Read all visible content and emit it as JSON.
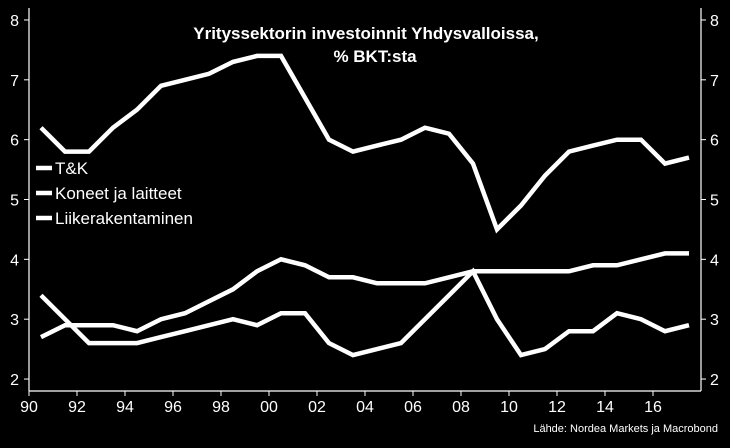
{
  "chart_data": {
    "type": "line",
    "title_lines": [
      "Yrityssektorin investoinnit Yhdysvalloissa,",
      "% BKT:sta"
    ],
    "source": "Lähde: Nordea Markets ja Macrobond",
    "xlim": [
      1990,
      2018
    ],
    "ylim": [
      1.8,
      8.2
    ],
    "x_ticks": [
      1990,
      1992,
      1994,
      1996,
      1998,
      2000,
      2002,
      2004,
      2006,
      2008,
      2010,
      2012,
      2014,
      2016
    ],
    "x_tick_labels": [
      "90",
      "92",
      "94",
      "96",
      "98",
      "00",
      "02",
      "04",
      "06",
      "08",
      "10",
      "12",
      "14",
      "16"
    ],
    "y_ticks": [
      2,
      3,
      4,
      5,
      6,
      7,
      8
    ],
    "y_tick_labels": [
      "2",
      "3",
      "4",
      "5",
      "6",
      "7",
      "8"
    ],
    "legend_position": "left",
    "grid": false,
    "line_color": "#ffffff",
    "background": "#000000",
    "series": [
      {
        "name": "T&K",
        "x": [
          1990.5,
          1991.5,
          1992.5,
          1993.5,
          1994.5,
          1995.5,
          1996.5,
          1997.5,
          1998.5,
          1999.5,
          2000.5,
          2001.5,
          2002.5,
          2003.5,
          2004.5,
          2005.5,
          2006.5,
          2007.5,
          2008.5,
          2009.5,
          2010.5,
          2011.5,
          2012.5,
          2013.5,
          2014.5,
          2015.5,
          2016.5,
          2017.5
        ],
        "values": [
          2.7,
          2.9,
          2.9,
          2.9,
          2.8,
          3.0,
          3.1,
          3.3,
          3.5,
          3.8,
          4.0,
          3.9,
          3.7,
          3.7,
          3.6,
          3.6,
          3.6,
          3.7,
          3.8,
          3.8,
          3.8,
          3.8,
          3.8,
          3.9,
          3.9,
          4.0,
          4.1,
          4.1
        ]
      },
      {
        "name": "Koneet ja laitteet",
        "x": [
          1990.5,
          1991.5,
          1992.5,
          1993.5,
          1994.5,
          1995.5,
          1996.5,
          1997.5,
          1998.5,
          1999.5,
          2000.5,
          2001.5,
          2002.5,
          2003.5,
          2004.5,
          2005.5,
          2006.5,
          2007.5,
          2008.5,
          2009.5,
          2010.5,
          2011.5,
          2012.5,
          2013.5,
          2014.5,
          2015.5,
          2016.5,
          2017.5
        ],
        "values": [
          6.2,
          5.8,
          5.8,
          6.2,
          6.5,
          6.9,
          7.0,
          7.1,
          7.3,
          7.4,
          7.4,
          6.7,
          6.0,
          5.8,
          5.9,
          6.0,
          6.2,
          6.1,
          5.6,
          4.5,
          4.9,
          5.4,
          5.8,
          5.9,
          6.0,
          6.0,
          5.6,
          5.7
        ]
      },
      {
        "name": "Liikerakentaminen",
        "x": [
          1990.5,
          1991.5,
          1992.5,
          1993.5,
          1994.5,
          1995.5,
          1996.5,
          1997.5,
          1998.5,
          1999.5,
          2000.5,
          2001.5,
          2002.5,
          2003.5,
          2004.5,
          2005.5,
          2006.5,
          2007.5,
          2008.5,
          2009.5,
          2010.5,
          2011.5,
          2012.5,
          2013.5,
          2014.5,
          2015.5,
          2016.5,
          2017.5
        ],
        "values": [
          3.4,
          3.0,
          2.6,
          2.6,
          2.6,
          2.7,
          2.8,
          2.9,
          3.0,
          2.9,
          3.1,
          3.1,
          2.6,
          2.4,
          2.5,
          2.6,
          3.0,
          3.4,
          3.8,
          3.0,
          2.4,
          2.5,
          2.8,
          2.8,
          3.1,
          3.0,
          2.8,
          2.9
        ]
      }
    ]
  }
}
